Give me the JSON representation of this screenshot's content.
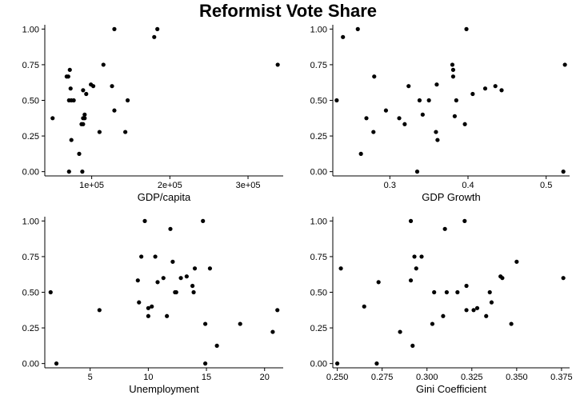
{
  "figure": {
    "title": "Reformist Vote Share"
  },
  "chart_data": [
    {
      "type": "scatter",
      "xlabel": "GDP/capita",
      "ylabel": "",
      "xlim": [
        40000,
        345000
      ],
      "ylim": [
        -0.03,
        1.03
      ],
      "xticks": [
        100000,
        200000,
        300000
      ],
      "xtick_labels": [
        "1e+05",
        "2e+05",
        "3e+05"
      ],
      "yticks": [
        0,
        0.25,
        0.5,
        0.75,
        1
      ],
      "ytick_labels": [
        "0.00",
        "0.25",
        "0.50",
        "0.75",
        "1.00"
      ],
      "grid": false,
      "points": [
        [
          50000,
          0.375
        ],
        [
          68000,
          0.667
        ],
        [
          70000,
          0.667
        ],
        [
          72000,
          0.714
        ],
        [
          71000,
          0.5
        ],
        [
          74000,
          0.5
        ],
        [
          77000,
          0.5
        ],
        [
          73000,
          0.583
        ],
        [
          74000,
          0.222
        ],
        [
          71000,
          0.0
        ],
        [
          84000,
          0.125
        ],
        [
          88000,
          0.0
        ],
        [
          87000,
          0.333
        ],
        [
          89000,
          0.333
        ],
        [
          89000,
          0.375
        ],
        [
          91000,
          0.4
        ],
        [
          91000,
          0.375
        ],
        [
          89000,
          0.571
        ],
        [
          93000,
          0.545
        ],
        [
          99000,
          0.611
        ],
        [
          102000,
          0.6
        ],
        [
          110000,
          0.278
        ],
        [
          115000,
          0.75
        ],
        [
          126000,
          0.6
        ],
        [
          129000,
          0.429
        ],
        [
          129000,
          1.0
        ],
        [
          143000,
          0.278
        ],
        [
          146000,
          0.5
        ],
        [
          180000,
          0.944
        ],
        [
          184000,
          1.0
        ],
        [
          338000,
          0.75
        ]
      ]
    },
    {
      "type": "scatter",
      "xlabel": "GDP Growth",
      "ylabel": "",
      "xlim": [
        0.227,
        0.53
      ],
      "ylim": [
        -0.03,
        1.03
      ],
      "xticks": [
        0.3,
        0.4,
        0.5
      ],
      "xtick_labels": [
        "0.3",
        "0.4",
        "0.5"
      ],
      "yticks": [
        0,
        0.25,
        0.5,
        0.75,
        1
      ],
      "ytick_labels": [
        "0.00",
        "0.25",
        "0.50",
        "0.75",
        "1.00"
      ],
      "grid": false,
      "points": [
        [
          0.232,
          0.5
        ],
        [
          0.24,
          0.944
        ],
        [
          0.259,
          1.0
        ],
        [
          0.263,
          0.125
        ],
        [
          0.27,
          0.375
        ],
        [
          0.279,
          0.278
        ],
        [
          0.28,
          0.667
        ],
        [
          0.295,
          0.429
        ],
        [
          0.312,
          0.375
        ],
        [
          0.319,
          0.333
        ],
        [
          0.324,
          0.6
        ],
        [
          0.335,
          0.0
        ],
        [
          0.338,
          0.5
        ],
        [
          0.342,
          0.4
        ],
        [
          0.35,
          0.5
        ],
        [
          0.359,
          0.278
        ],
        [
          0.361,
          0.222
        ],
        [
          0.36,
          0.611
        ],
        [
          0.38,
          0.75
        ],
        [
          0.381,
          0.714
        ],
        [
          0.381,
          0.667
        ],
        [
          0.383,
          0.389
        ],
        [
          0.385,
          0.5
        ],
        [
          0.396,
          0.333
        ],
        [
          0.398,
          1.0
        ],
        [
          0.406,
          0.545
        ],
        [
          0.422,
          0.583
        ],
        [
          0.435,
          0.6
        ],
        [
          0.443,
          0.571
        ],
        [
          0.522,
          0.0
        ],
        [
          0.524,
          0.75
        ]
      ]
    },
    {
      "type": "scatter",
      "xlabel": "Unemployment",
      "ylabel": "",
      "xlim": [
        1.1,
        21.6
      ],
      "ylim": [
        -0.03,
        1.03
      ],
      "xticks": [
        5,
        10,
        15,
        20
      ],
      "xtick_labels": [
        "5",
        "10",
        "15",
        "20"
      ],
      "yticks": [
        0,
        0.25,
        0.5,
        0.75,
        1
      ],
      "ytick_labels": [
        "0.00",
        "0.25",
        "0.50",
        "0.75",
        "1.00"
      ],
      "grid": false,
      "points": [
        [
          1.6,
          0.5
        ],
        [
          2.1,
          0.0
        ],
        [
          5.8,
          0.375
        ],
        [
          9.1,
          0.583
        ],
        [
          9.2,
          0.429
        ],
        [
          9.4,
          0.75
        ],
        [
          9.7,
          1.0
        ],
        [
          10.0,
          0.333
        ],
        [
          10.0,
          0.389
        ],
        [
          10.3,
          0.4
        ],
        [
          10.6,
          0.75
        ],
        [
          10.8,
          0.571
        ],
        [
          11.3,
          0.6
        ],
        [
          11.6,
          0.333
        ],
        [
          11.9,
          0.944
        ],
        [
          12.1,
          0.714
        ],
        [
          12.3,
          0.5
        ],
        [
          12.4,
          0.5
        ],
        [
          12.8,
          0.6
        ],
        [
          13.3,
          0.611
        ],
        [
          13.8,
          0.545
        ],
        [
          13.9,
          0.5
        ],
        [
          14.0,
          0.667
        ],
        [
          14.7,
          1.0
        ],
        [
          14.9,
          0.278
        ],
        [
          14.9,
          0.0
        ],
        [
          15.3,
          0.667
        ],
        [
          15.9,
          0.125
        ],
        [
          17.9,
          0.278
        ],
        [
          20.7,
          0.222
        ],
        [
          21.1,
          0.375
        ]
      ]
    },
    {
      "type": "scatter",
      "xlabel": "Gini Coefficient",
      "ylabel": "",
      "xlim": [
        0.2475,
        0.3795
      ],
      "ylim": [
        -0.03,
        1.03
      ],
      "xticks": [
        0.25,
        0.275,
        0.3,
        0.325,
        0.35,
        0.375
      ],
      "xtick_labels": [
        "0.250",
        "0.275",
        "0.300",
        "0.325",
        "0.350",
        "0.375"
      ],
      "yticks": [
        0,
        0.25,
        0.5,
        0.75,
        1
      ],
      "ytick_labels": [
        "0.00",
        "0.25",
        "0.50",
        "0.75",
        "1.00"
      ],
      "grid": false,
      "points": [
        [
          0.25,
          0.0
        ],
        [
          0.252,
          0.667
        ],
        [
          0.265,
          0.4
        ],
        [
          0.272,
          0.0
        ],
        [
          0.273,
          0.571
        ],
        [
          0.285,
          0.222
        ],
        [
          0.291,
          0.583
        ],
        [
          0.291,
          1.0
        ],
        [
          0.292,
          0.125
        ],
        [
          0.293,
          0.75
        ],
        [
          0.294,
          0.667
        ],
        [
          0.297,
          0.75
        ],
        [
          0.303,
          0.278
        ],
        [
          0.304,
          0.5
        ],
        [
          0.309,
          0.333
        ],
        [
          0.31,
          0.944
        ],
        [
          0.311,
          0.5
        ],
        [
          0.317,
          0.5
        ],
        [
          0.321,
          1.0
        ],
        [
          0.322,
          0.545
        ],
        [
          0.322,
          0.375
        ],
        [
          0.326,
          0.375
        ],
        [
          0.328,
          0.389
        ],
        [
          0.333,
          0.333
        ],
        [
          0.335,
          0.5
        ],
        [
          0.336,
          0.429
        ],
        [
          0.341,
          0.611
        ],
        [
          0.342,
          0.6
        ],
        [
          0.347,
          0.278
        ],
        [
          0.35,
          0.714
        ],
        [
          0.376,
          0.6
        ]
      ]
    }
  ]
}
